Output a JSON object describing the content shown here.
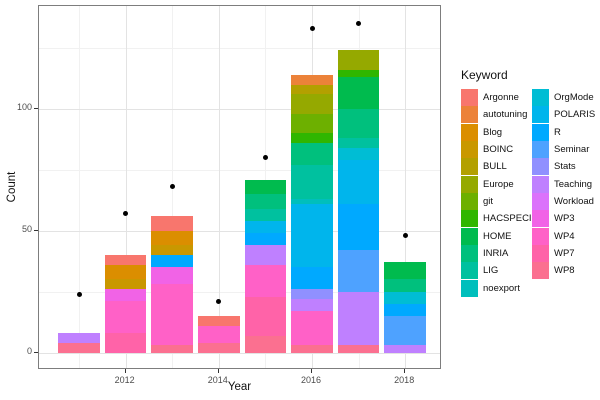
{
  "axes": {
    "x_title": "Year",
    "y_title": "Count"
  },
  "legend": {
    "title": "Keyword",
    "column1": [
      "Argonne",
      "autotuning",
      "Blog",
      "BOINC",
      "BULL",
      "Europe",
      "git",
      "HACSPECIS",
      "HOME",
      "INRIA",
      "LIG",
      "noexport"
    ],
    "column2": [
      "OrgMode",
      "POLARIS",
      "R",
      "Seminar",
      "Stats",
      "Teaching",
      "Workload",
      "WP3",
      "WP4",
      "WP7",
      "WP8"
    ]
  },
  "palette": {
    "Argonne": "#F8766D",
    "autotuning": "#EC8239",
    "Blog": "#DB8E00",
    "BOINC": "#C99800",
    "BULL": "#B3A000",
    "Europe": "#95A900",
    "git": "#6DB000",
    "HACSPECIS": "#2FB600",
    "HOME": "#00BB4E",
    "INRIA": "#00C07D",
    "LIG": "#00C19F",
    "noexport": "#00BFBC",
    "OrgMode": "#00BDD4",
    "POLARIS": "#00B5EC",
    "R": "#00A9FF",
    "Seminar": "#4EA2FF",
    "Stats": "#9090FF",
    "Teaching": "#BF80FF",
    "Workload": "#DB72FB",
    "WP3": "#F163E6",
    "WP4": "#FF61C7",
    "WP7": "#FF63A8",
    "WP8": "#FB7090"
  },
  "chart_data": {
    "type": "bar",
    "stacked": true,
    "title": "",
    "xlabel": "Year",
    "ylabel": "Count",
    "legend_title": "Keyword",
    "ylim": [
      0,
      140
    ],
    "grid": true,
    "years": [
      2011,
      2012,
      2013,
      2014,
      2015,
      2016,
      2017,
      2018
    ],
    "x_tick_labels": [
      2012,
      2014,
      2016,
      2018
    ],
    "x_minor_gridlines": [
      2011,
      2013,
      2015,
      2017
    ],
    "y_tick_labels": [
      0,
      50,
      100
    ],
    "y_minor_gridlines": [
      25,
      75,
      125
    ],
    "totals": {
      "2011": 8,
      "2012": 40,
      "2013": 56,
      "2014": 15,
      "2015": 71,
      "2016": 114,
      "2017": 124,
      "2018": 37
    },
    "stacks": {
      "2011": [
        {
          "keyword": "WP8",
          "value": 4
        },
        {
          "keyword": "Teaching",
          "value": 4
        }
      ],
      "2012": [
        {
          "keyword": "WP7",
          "value": 8
        },
        {
          "keyword": "WP4",
          "value": 13
        },
        {
          "keyword": "WP3",
          "value": 5
        },
        {
          "keyword": "BOINC",
          "value": 4
        },
        {
          "keyword": "Blog",
          "value": 6
        },
        {
          "keyword": "Argonne",
          "value": 4
        }
      ],
      "2013": [
        {
          "keyword": "WP8",
          "value": 3
        },
        {
          "keyword": "WP4",
          "value": 25
        },
        {
          "keyword": "WP3",
          "value": 7
        },
        {
          "keyword": "R",
          "value": 5
        },
        {
          "keyword": "BOINC",
          "value": 4
        },
        {
          "keyword": "Blog",
          "value": 6
        },
        {
          "keyword": "Argonne",
          "value": 6
        }
      ],
      "2014": [
        {
          "keyword": "WP8",
          "value": 4
        },
        {
          "keyword": "WP4",
          "value": 7
        },
        {
          "keyword": "Argonne",
          "value": 4
        }
      ],
      "2015": [
        {
          "keyword": "WP8",
          "value": 7
        },
        {
          "keyword": "WP7",
          "value": 16
        },
        {
          "keyword": "WP4",
          "value": 13
        },
        {
          "keyword": "Teaching",
          "value": 8
        },
        {
          "keyword": "R",
          "value": 5
        },
        {
          "keyword": "POLARIS",
          "value": 5
        },
        {
          "keyword": "LIG",
          "value": 5
        },
        {
          "keyword": "INRIA",
          "value": 6
        },
        {
          "keyword": "HOME",
          "value": 6
        }
      ],
      "2016": [
        {
          "keyword": "WP8",
          "value": 3
        },
        {
          "keyword": "WP4",
          "value": 14
        },
        {
          "keyword": "Teaching",
          "value": 5
        },
        {
          "keyword": "Stats",
          "value": 4
        },
        {
          "keyword": "R",
          "value": 9
        },
        {
          "keyword": "POLARIS",
          "value": 26
        },
        {
          "keyword": "noexport",
          "value": 2
        },
        {
          "keyword": "LIG",
          "value": 14
        },
        {
          "keyword": "INRIA",
          "value": 9
        },
        {
          "keyword": "HACSPECIS",
          "value": 4
        },
        {
          "keyword": "git",
          "value": 8
        },
        {
          "keyword": "Europe",
          "value": 8
        },
        {
          "keyword": "BULL",
          "value": 4
        },
        {
          "keyword": "autotuning",
          "value": 4
        }
      ],
      "2017": [
        {
          "keyword": "WP8",
          "value": 3
        },
        {
          "keyword": "Teaching",
          "value": 22
        },
        {
          "keyword": "Seminar",
          "value": 17
        },
        {
          "keyword": "R",
          "value": 19
        },
        {
          "keyword": "POLARIS",
          "value": 18
        },
        {
          "keyword": "OrgMode",
          "value": 5
        },
        {
          "keyword": "LIG",
          "value": 4
        },
        {
          "keyword": "INRIA",
          "value": 12
        },
        {
          "keyword": "HOME",
          "value": 13
        },
        {
          "keyword": "HACSPECIS",
          "value": 3
        },
        {
          "keyword": "Europe",
          "value": 8
        }
      ],
      "2018": [
        {
          "keyword": "Teaching",
          "value": 3
        },
        {
          "keyword": "Seminar",
          "value": 12
        },
        {
          "keyword": "R",
          "value": 5
        },
        {
          "keyword": "OrgMode",
          "value": 5
        },
        {
          "keyword": "INRIA",
          "value": 5
        },
        {
          "keyword": "HOME",
          "value": 7
        }
      ]
    },
    "points": {
      "2011": 24,
      "2012": 57,
      "2013": 68,
      "2014": 21,
      "2015": 80,
      "2016": 133,
      "2017": 135,
      "2018": 48
    }
  }
}
